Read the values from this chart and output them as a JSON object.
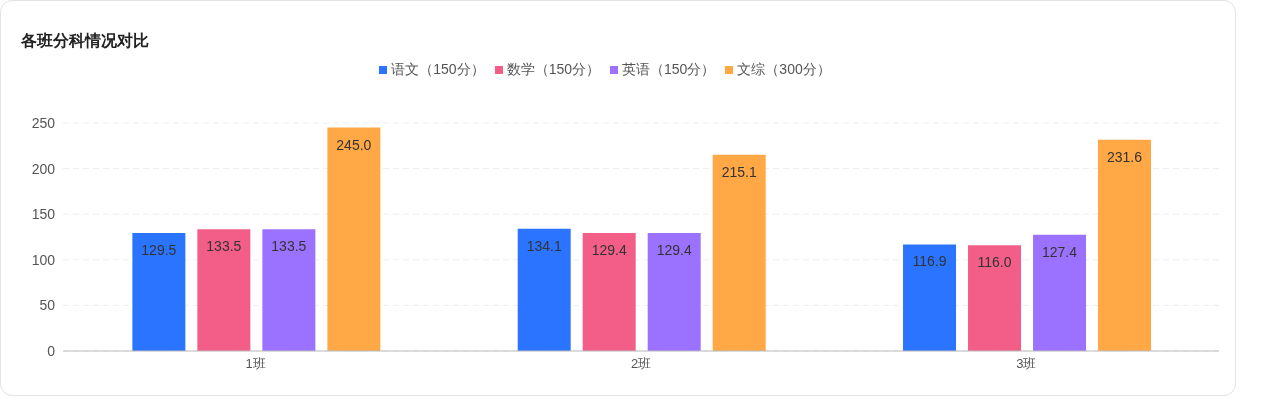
{
  "chart_data": {
    "type": "bar",
    "title": "各班分科情况对比",
    "categories": [
      "1班",
      "2班",
      "3班"
    ],
    "series": [
      {
        "name": "语文（150分）",
        "color": "#2a74ff",
        "values": [
          129.5,
          134.1,
          116.9
        ],
        "value_labels": [
          "129.5",
          "134.1",
          "116.9"
        ]
      },
      {
        "name": "数学（150分）",
        "color": "#f25e87",
        "values": [
          133.5,
          129.4,
          116.0
        ],
        "value_labels": [
          "133.5",
          "129.4",
          "116.0"
        ]
      },
      {
        "name": "英语（150分）",
        "color": "#9b72ff",
        "values": [
          133.5,
          129.4,
          127.4
        ],
        "value_labels": [
          "133.5",
          "129.4",
          "127.4"
        ]
      },
      {
        "name": "文综（300分）",
        "color": "#ffa845",
        "values": [
          245.0,
          215.1,
          231.6
        ],
        "value_labels": [
          "245.0",
          "215.1",
          "231.6"
        ]
      }
    ],
    "ylim": [
      0,
      250
    ],
    "yticks": [
      0,
      50,
      100,
      150,
      200,
      250
    ],
    "grid": "y",
    "legend": "top"
  }
}
